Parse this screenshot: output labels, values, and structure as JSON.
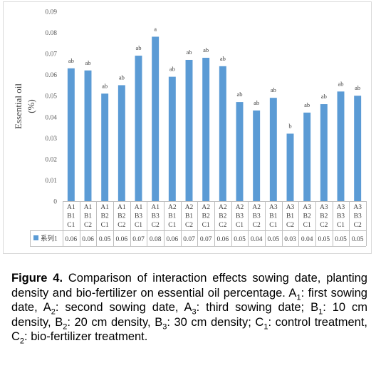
{
  "chart_data": {
    "type": "bar",
    "ylabel": "Essential oil",
    "yunit": "(%)",
    "ylim": [
      0,
      0.09
    ],
    "yticks": [
      "0",
      "0.01",
      "0.02",
      "0.03",
      "0.04",
      "0.05",
      "0.06",
      "0.07",
      "0.08",
      "0.09"
    ],
    "grid": false,
    "bar_color": "#5B9BD5",
    "categories": [
      [
        "A1",
        "B1",
        "C1"
      ],
      [
        "A1",
        "B1",
        "C2"
      ],
      [
        "A1",
        "B2",
        "C1"
      ],
      [
        "A1",
        "B2",
        "C2"
      ],
      [
        "A1",
        "B3",
        "C1"
      ],
      [
        "A1",
        "B3",
        "C2"
      ],
      [
        "A2",
        "B1",
        "C1"
      ],
      [
        "A2",
        "B1",
        "C2"
      ],
      [
        "A2",
        "B2",
        "C1"
      ],
      [
        "A2",
        "B2",
        "C2"
      ],
      [
        "A2",
        "B3",
        "C1"
      ],
      [
        "A2",
        "B3",
        "C2"
      ],
      [
        "A3",
        "B1",
        "C1"
      ],
      [
        "A3",
        "B1",
        "C2"
      ],
      [
        "A3",
        "B2",
        "C1"
      ],
      [
        "A3",
        "B2",
        "C2"
      ],
      [
        "A3",
        "B3",
        "C1"
      ],
      [
        "A3",
        "B3",
        "C2"
      ]
    ],
    "series": [
      {
        "name": "系列1",
        "values": [
          0.063,
          0.062,
          0.051,
          0.055,
          0.069,
          0.078,
          0.059,
          0.067,
          0.068,
          0.064,
          0.047,
          0.043,
          0.049,
          0.032,
          0.042,
          0.046,
          0.052,
          0.05
        ],
        "table_values": [
          "0.06",
          "0.06",
          "0.05",
          "0.06",
          "0.07",
          "0.08",
          "0.06",
          "0.07",
          "0.07",
          "0.06",
          "0.05",
          "0.04",
          "0.05",
          "0.03",
          "0.04",
          "0.05",
          "0.05",
          "0.05"
        ],
        "letters": [
          "ab",
          "ab",
          "ab",
          "ab",
          "ab",
          "a",
          "ab",
          "ab",
          "ab",
          "ab",
          "ab",
          "ab",
          "ab",
          "b",
          "ab",
          "ab",
          "ab",
          "ab"
        ]
      }
    ]
  },
  "caption": {
    "label": "Figure 4.",
    "text": " Comparison of interaction effects sowing date, planting density and bio-fertilizer on essential oil percentage. A",
    "s1": "1",
    "t1": ": first sowing date, A",
    "s2": "2",
    "t2": ": second sowing date, A",
    "s3": "3",
    "t3": ": third sowing date; B",
    "s4": "1",
    "t4": ": 10 cm density, B",
    "s5": "2",
    "t5": ": 20 cm density, B",
    "s6": "3",
    "t6": ": 30 cm density; C",
    "s7": "1",
    "t7": ": control treatment, C",
    "s8": "2",
    "t8": ": bio-fertilizer treatment."
  }
}
